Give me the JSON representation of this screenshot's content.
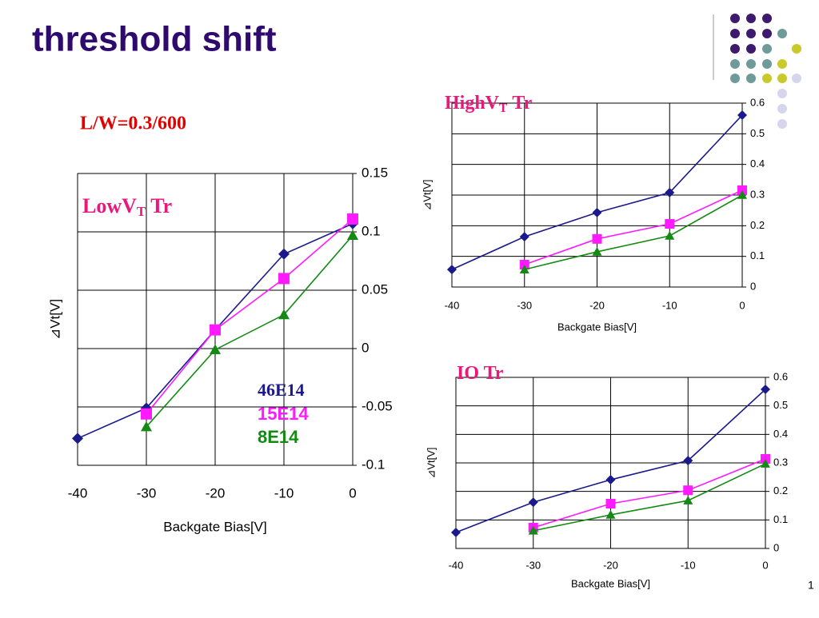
{
  "title": "threshold shift",
  "subtitle": "L/W=0.3/600",
  "page_number": "1",
  "chart_data": [
    {
      "type": "line",
      "title": [
        "LowV",
        "T",
        "Tr"
      ],
      "x_label": "Backgate Bias[V]",
      "y_label": "⊿Vt[V]",
      "x": [
        -40,
        -30,
        -20,
        -10,
        0
      ],
      "xlim": [
        -40,
        0
      ],
      "xticks": [
        -40,
        -30,
        -20,
        -10,
        0
      ],
      "ylim": [
        -0.1,
        0.15
      ],
      "yticks": [
        -0.1,
        -0.05,
        0,
        0.05,
        0.1,
        0.15
      ],
      "grid": true,
      "legend": "lower right",
      "series": [
        {
          "name": "46E14",
          "color": "#1a1a8c",
          "marker": "diamond",
          "values": [
            -0.077,
            -0.051,
            0.016,
            0.081,
            0.107
          ]
        },
        {
          "name": "15E14",
          "color": "#ff1aff",
          "marker": "square",
          "values": [
            null,
            -0.056,
            0.016,
            0.06,
            0.111
          ]
        },
        {
          "name": "8E14",
          "color": "#138a13",
          "marker": "triangle",
          "values": [
            null,
            -0.067,
            -0.001,
            0.029,
            0.097
          ]
        }
      ]
    },
    {
      "type": "line",
      "title": [
        "HighV",
        "T",
        "Tr"
      ],
      "x_label": "Backgate Bias[V]",
      "y_label": "⊿Vt[V]",
      "x": [
        -40,
        -30,
        -20,
        -10,
        0
      ],
      "xlim": [
        -40,
        0
      ],
      "xticks": [
        -40,
        -30,
        -20,
        -10,
        0
      ],
      "ylim": [
        0,
        0.6
      ],
      "yticks": [
        0,
        0.1,
        0.2,
        0.3,
        0.4,
        0.5,
        0.6
      ],
      "grid": true,
      "series": [
        {
          "color": "#1a1a8c",
          "marker": "diamond",
          "values": [
            0.057,
            0.164,
            0.243,
            0.308,
            0.561
          ]
        },
        {
          "color": "#ff1aff",
          "marker": "square",
          "values": [
            null,
            0.073,
            0.157,
            0.206,
            0.316
          ]
        },
        {
          "color": "#138a13",
          "marker": "triangle",
          "values": [
            null,
            0.057,
            0.115,
            0.167,
            0.3
          ]
        }
      ]
    },
    {
      "type": "line",
      "title": [
        "IO Tr"
      ],
      "x_label": "Backgate Bias[V]",
      "y_label": "⊿Vt[V]",
      "x": [
        -40,
        -30,
        -20,
        -10,
        0
      ],
      "xlim": [
        -40,
        0
      ],
      "xticks": [
        -40,
        -30,
        -20,
        -10,
        0
      ],
      "ylim": [
        0,
        0.6
      ],
      "yticks": [
        0,
        0.1,
        0.2,
        0.3,
        0.4,
        0.5,
        0.6
      ],
      "grid": true,
      "series": [
        {
          "color": "#1a1a8c",
          "marker": "diamond",
          "values": [
            0.056,
            0.162,
            0.241,
            0.308,
            0.558
          ]
        },
        {
          "color": "#ff1aff",
          "marker": "square",
          "values": [
            null,
            0.073,
            0.157,
            0.204,
            0.314
          ]
        },
        {
          "color": "#138a13",
          "marker": "triangle",
          "values": [
            null,
            0.062,
            0.118,
            0.168,
            0.297
          ]
        }
      ]
    }
  ]
}
